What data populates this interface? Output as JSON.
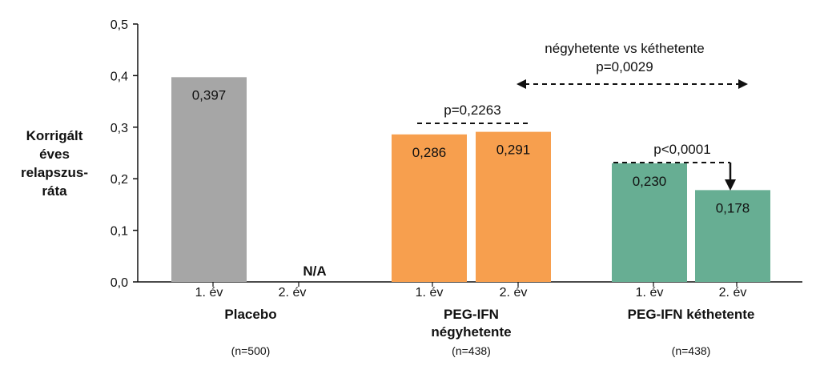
{
  "chart_data": {
    "type": "bar",
    "ylabel_lines": [
      "Korrigált",
      "éves",
      "relapszus-",
      "ráta"
    ],
    "ylim": [
      0,
      0.5
    ],
    "yticks": [
      "0,0",
      "0,1",
      "0,2",
      "0,3",
      "0,4",
      "0,5"
    ],
    "groups": [
      {
        "name": "Placebo",
        "name_line2": "",
        "n": "(n=500)",
        "color": "#A6A6A6",
        "bars": [
          {
            "category": "1. év",
            "value": 0.397,
            "label": "0,397"
          },
          {
            "category": "2. év",
            "value": null,
            "label": "N/A"
          }
        ]
      },
      {
        "name": "PEG-IFN",
        "name_line2": "négyhetente",
        "n": "(n=438)",
        "color": "#F79F4E",
        "bars": [
          {
            "category": "1. év",
            "value": 0.286,
            "label": "0,286"
          },
          {
            "category": "2. év",
            "value": 0.291,
            "label": "0,291"
          }
        ]
      },
      {
        "name": "PEG-IFN kéthetente",
        "name_line2": "",
        "n": "(n=438)",
        "color": "#67AE93",
        "bars": [
          {
            "category": "1. év",
            "value": 0.23,
            "label": "0,230"
          },
          {
            "category": "2. év",
            "value": 0.178,
            "label": "0,178"
          }
        ]
      }
    ],
    "annotations": {
      "p_four_weekly": "p=0,2263",
      "p_two_weekly": "p<0,0001",
      "comparison_line1": "négyhetente vs kéthetente",
      "comparison_line2": "p=0,0029"
    }
  }
}
